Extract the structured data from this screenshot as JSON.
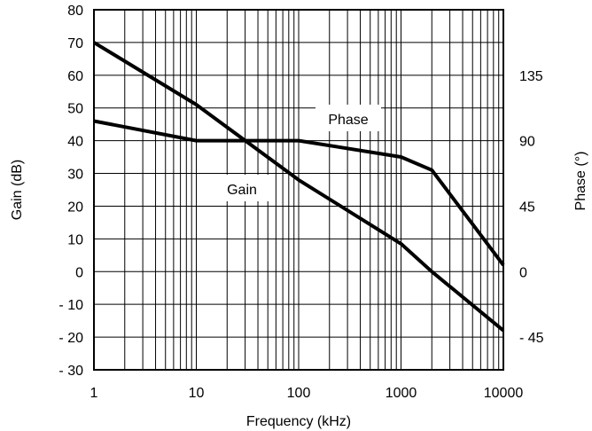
{
  "chart_data": {
    "type": "line",
    "x_scale": "log",
    "xlim": [
      1,
      10000
    ],
    "x_ticks": [
      "1",
      "10",
      "100",
      "1000",
      "10000"
    ],
    "xlabel": "Frequency (kHz)",
    "ylabel_left": "Gain (dB)",
    "ylim_left": [
      -30,
      80
    ],
    "y_ticks_left": [
      "80",
      "70",
      "60",
      "50",
      "40",
      "30",
      "20",
      "10",
      "0",
      "- 10",
      "- 20",
      "- 30"
    ],
    "ylabel_right": "Phase (°)",
    "ylim_right": [
      -67.5,
      180
    ],
    "y_ticks_right": [
      "135",
      "90",
      "45",
      "0",
      "- 45"
    ],
    "grid": true,
    "series": [
      {
        "name": "Gain",
        "axis": "left",
        "color": "#000000",
        "points": [
          [
            1,
            70
          ],
          [
            10,
            51
          ],
          [
            100,
            28
          ],
          [
            1000,
            8.5
          ],
          [
            2000,
            0
          ],
          [
            10000,
            -18
          ]
        ]
      },
      {
        "name": "Phase",
        "axis": "right",
        "color": "#000000",
        "points": [
          [
            1,
            103.5
          ],
          [
            10,
            90
          ],
          [
            100,
            90
          ],
          [
            1000,
            78.8
          ],
          [
            2000,
            69.8
          ],
          [
            10000,
            4.5
          ]
        ]
      }
    ]
  }
}
